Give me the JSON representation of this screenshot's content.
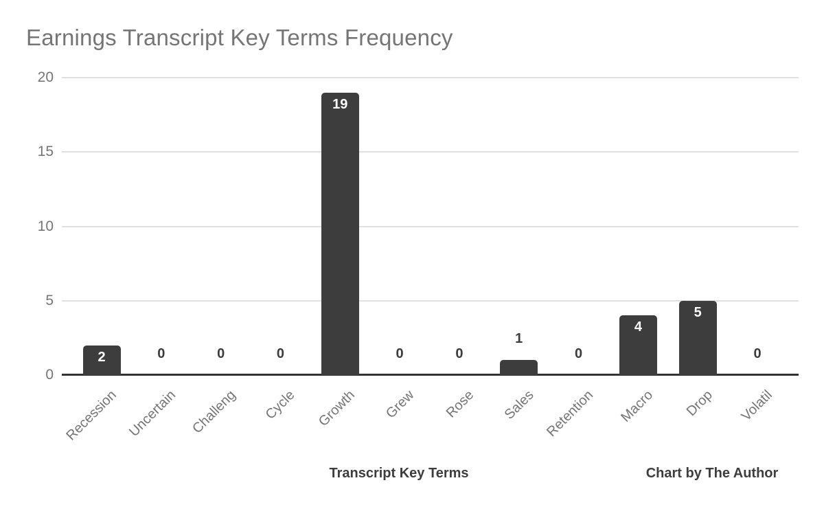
{
  "title": "Earnings Transcript Key Terms Frequency",
  "footer": {
    "xlabel": "Transcript Key Terms",
    "credit": "Chart by The Author"
  },
  "colors": {
    "bar": "#3d3d3d",
    "title_text": "#757575",
    "tick_text": "#757575",
    "grid": "#e0e0e0",
    "axis": "#333333",
    "value_label_dark": "#3c3c3c",
    "value_label_light": "#ffffff",
    "background": "#ffffff"
  },
  "chart_data": {
    "type": "bar",
    "title": "Earnings Transcript Key Terms Frequency",
    "xlabel": "Transcript Key Terms",
    "ylabel": "",
    "categories": [
      "Recession",
      "Uncertain",
      "Challeng",
      "Cycle",
      "Growth",
      "Grew",
      "Rose",
      "Sales",
      "Retention",
      "Macro",
      "Drop",
      "Volatil"
    ],
    "values": [
      2,
      0,
      0,
      0,
      19,
      0,
      0,
      1,
      0,
      4,
      5,
      0
    ],
    "ylim": [
      0,
      20
    ],
    "yticks": [
      0,
      5,
      10,
      15,
      20
    ],
    "grid": true,
    "legend": "none",
    "bar_value_labels": true,
    "annotations": [
      "Chart by The Author"
    ]
  }
}
